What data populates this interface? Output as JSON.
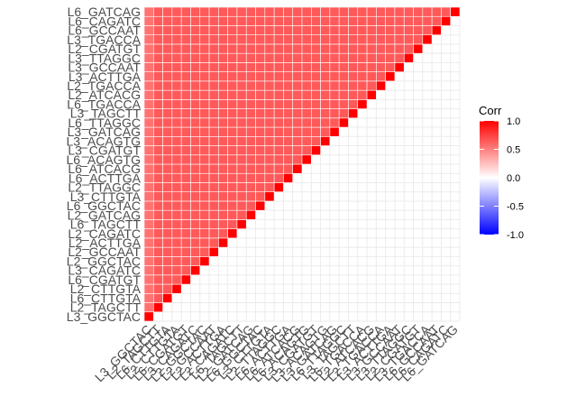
{
  "chart_data": {
    "type": "heatmap",
    "subtype": "lower-triangle correlation matrix",
    "labels": [
      "L3_GGCTAC",
      "L2_TAGCTT",
      "L6_CTTGTA",
      "L2_CTTGTA",
      "L6_CGATGT",
      "L3_CAGATC",
      "L2_GGCTAC",
      "L2_GCCAAT",
      "L2_ACTTGA",
      "L2_CAGATC",
      "L6_TAGCTT",
      "L2_GATCAG",
      "L6_GGCTAC",
      "L3_CTTGTA",
      "L2_TTAGGC",
      "L6_ACTTGA",
      "L6_ATCACG",
      "L6_ACAGTG",
      "L3_CGATGT",
      "L3_ACAGTG",
      "L3_GATCAG",
      "L6_TTAGGC",
      "L3_TAGCTT",
      "L6_TGACCA",
      "L2_ATCACG",
      "L2_TGACCA",
      "L3_ACTTGA",
      "L3_GCCAAT",
      "L3_TTAGGC",
      "L2_CGATGT",
      "L3_TGACCA",
      "L6_GCCAAT",
      "L6_CAGATC",
      "L6_GATCAG"
    ],
    "diagonal_value": 1.0,
    "off_diagonal_value_approx": 0.65,
    "first_column_value_approx": 0.55,
    "fill_scale": {
      "low": "#0000ff",
      "mid": "#ffffff",
      "high": "#ff0000",
      "limits": [
        -1,
        1
      ]
    },
    "legend": {
      "title": "Corr",
      "ticks": [
        "1.0",
        "0.5",
        "0.0",
        "-0.5",
        "-1.0"
      ],
      "tick_values": [
        1.0,
        0.5,
        0.0,
        -0.5,
        -1.0
      ],
      "placement": "right"
    },
    "grid": true
  }
}
